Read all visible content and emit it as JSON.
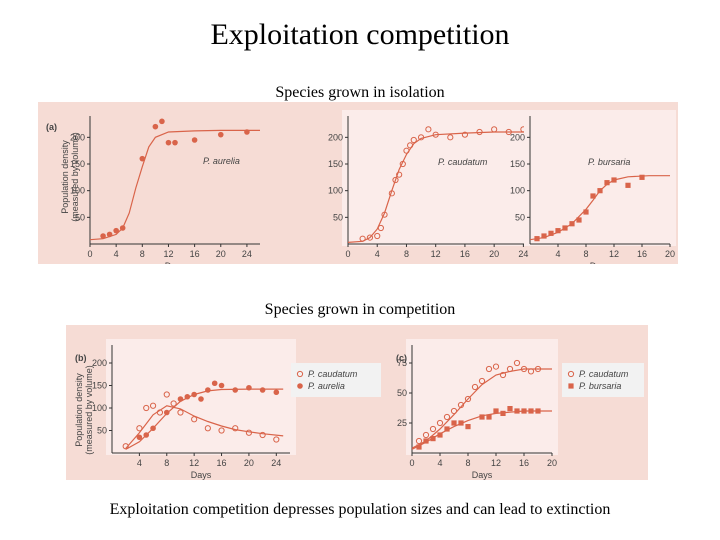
{
  "title": "Exploitation competition",
  "isolation_subtitle": "Species grown in isolation",
  "competition_subtitle": "Species grown in competition",
  "caption": "Exploitation competition depresses population sizes and can lead to extinction",
  "colors": {
    "accent": "#d9644a",
    "panel": "#f6dcd5",
    "inset": "#fbecea",
    "legend": "#f2f2f2"
  },
  "chart_data": [
    {
      "id": "a1",
      "type": "scatter",
      "panel_label": "(a)",
      "xlabel": "Days",
      "ylabel_line1": "Population density",
      "ylabel_line2": "(measured by volume)",
      "xticks": [
        "0",
        "4",
        "8",
        "12",
        "16",
        "20",
        "24"
      ],
      "yticks": [
        "50",
        "100",
        "150",
        "200"
      ],
      "xlim": [
        0,
        26
      ],
      "ylim": [
        0,
        240
      ],
      "series": [
        {
          "name": "P. aurelia",
          "marker": "circle-filled",
          "x": [
            2,
            3,
            4,
            5,
            8,
            10,
            11,
            12,
            13,
            16,
            20,
            24
          ],
          "y": [
            15,
            18,
            25,
            30,
            160,
            220,
            230,
            190,
            190,
            195,
            205,
            210
          ],
          "fit": [
            [
              0,
              8
            ],
            [
              2,
              10
            ],
            [
              4,
              18
            ],
            [
              5,
              30
            ],
            [
              6,
              58
            ],
            [
              7,
              105
            ],
            [
              8,
              145
            ],
            [
              9,
              182
            ],
            [
              10,
              200
            ],
            [
              12,
              210
            ],
            [
              16,
              212
            ],
            [
              20,
              213
            ],
            [
              26,
              213
            ]
          ]
        }
      ],
      "annotation": "P. aurelia"
    },
    {
      "id": "a2",
      "type": "scatter",
      "xlabel": "",
      "xticks": [
        "0",
        "4",
        "8",
        "12",
        "16",
        "20",
        "24"
      ],
      "yticks": [
        "50",
        "100",
        "150",
        "200"
      ],
      "xlim": [
        0,
        26
      ],
      "ylim": [
        0,
        240
      ],
      "series": [
        {
          "name": "P. caudatum",
          "marker": "circle-open",
          "x": [
            2,
            3,
            4,
            4.5,
            5,
            6,
            6.5,
            7,
            7.5,
            8,
            8.5,
            9,
            10,
            11,
            12,
            14,
            16,
            18,
            20,
            22,
            24
          ],
          "y": [
            10,
            12,
            15,
            30,
            55,
            95,
            120,
            130,
            150,
            175,
            185,
            195,
            200,
            215,
            205,
            200,
            205,
            210,
            215,
            210,
            215
          ],
          "fit": [
            [
              0,
              3
            ],
            [
              2,
              5
            ],
            [
              3,
              12
            ],
            [
              4,
              28
            ],
            [
              5,
              58
            ],
            [
              6,
              100
            ],
            [
              7,
              140
            ],
            [
              8,
              168
            ],
            [
              9,
              188
            ],
            [
              10,
              198
            ],
            [
              12,
              205
            ],
            [
              16,
              208
            ],
            [
              20,
              210
            ],
            [
              26,
              210
            ]
          ]
        }
      ],
      "annotation": "P. caudatum"
    },
    {
      "id": "a3",
      "type": "scatter",
      "xlabel": "Days",
      "xticks": [
        "4",
        "8",
        "12",
        "16",
        "20"
      ],
      "yticks": [
        "50",
        "100",
        "150",
        "200"
      ],
      "xlim": [
        0,
        20
      ],
      "ylim": [
        0,
        240
      ],
      "series": [
        {
          "name": "P. bursaria",
          "marker": "square-filled",
          "x": [
            1,
            2,
            3,
            4,
            5,
            6,
            7,
            8,
            9,
            10,
            11,
            12,
            14,
            16
          ],
          "y": [
            10,
            15,
            20,
            25,
            30,
            38,
            45,
            60,
            90,
            100,
            115,
            120,
            110,
            125
          ],
          "fit": [
            [
              0,
              8
            ],
            [
              2,
              12
            ],
            [
              4,
              22
            ],
            [
              6,
              38
            ],
            [
              8,
              65
            ],
            [
              9,
              82
            ],
            [
              10,
              100
            ],
            [
              11,
              112
            ],
            [
              12,
              120
            ],
            [
              14,
              126
            ],
            [
              17,
              128
            ],
            [
              20,
              128
            ]
          ]
        }
      ],
      "annotation": "P. bursaria"
    },
    {
      "id": "b",
      "type": "scatter",
      "panel_label": "(b)",
      "xlabel": "Days",
      "ylabel_line1": "Population density",
      "ylabel_line2": "(measured by volume)",
      "xticks": [
        "4",
        "8",
        "12",
        "16",
        "20",
        "24"
      ],
      "yticks": [
        "50",
        "100",
        "150",
        "200"
      ],
      "xlim": [
        0,
        26
      ],
      "ylim": [
        0,
        240
      ],
      "legend": [
        "P. caudatum",
        "P. aurelia"
      ],
      "series": [
        {
          "name": "P. caudatum",
          "marker": "circle-open",
          "x": [
            2,
            4,
            5,
            6,
            7,
            8,
            9,
            10,
            12,
            14,
            16,
            18,
            20,
            22,
            24
          ],
          "y": [
            15,
            55,
            100,
            105,
            90,
            130,
            110,
            90,
            75,
            55,
            50,
            55,
            45,
            40,
            30
          ],
          "fit": [
            [
              2,
              10
            ],
            [
              4,
              45
            ],
            [
              6,
              85
            ],
            [
              8,
              105
            ],
            [
              10,
              98
            ],
            [
              12,
              82
            ],
            [
              14,
              70
            ],
            [
              16,
              60
            ],
            [
              18,
              52
            ],
            [
              20,
              47
            ],
            [
              22,
              43
            ],
            [
              25,
              38
            ]
          ]
        },
        {
          "name": "P. aurelia",
          "marker": "circle-filled",
          "x": [
            4,
            5,
            6,
            8,
            10,
            11,
            12,
            13,
            14,
            15,
            16,
            18,
            20,
            22,
            24
          ],
          "y": [
            35,
            40,
            55,
            90,
            120,
            125,
            130,
            120,
            140,
            155,
            150,
            140,
            145,
            140,
            135
          ],
          "fit": [
            [
              2,
              8
            ],
            [
              4,
              25
            ],
            [
              6,
              55
            ],
            [
              8,
              88
            ],
            [
              10,
              115
            ],
            [
              12,
              130
            ],
            [
              14,
              138
            ],
            [
              16,
              141
            ],
            [
              20,
              142
            ],
            [
              25,
              142
            ]
          ]
        }
      ]
    },
    {
      "id": "c",
      "type": "scatter",
      "panel_label": "(c)",
      "xlabel": "Days",
      "xticks": [
        "0",
        "4",
        "8",
        "12",
        "16",
        "20"
      ],
      "yticks": [
        "25",
        "50",
        "75"
      ],
      "xlim": [
        0,
        20
      ],
      "ylim": [
        0,
        90
      ],
      "legend": [
        "P. caudatum",
        "P. bursaria"
      ],
      "series": [
        {
          "name": "P. caudatum",
          "marker": "circle-open",
          "x": [
            1,
            2,
            3,
            4,
            5,
            6,
            7,
            8,
            9,
            10,
            11,
            12,
            13,
            14,
            15,
            16,
            17,
            18
          ],
          "y": [
            10,
            15,
            20,
            25,
            30,
            35,
            40,
            45,
            55,
            60,
            70,
            72,
            65,
            70,
            75,
            70,
            68,
            70
          ],
          "fit": [
            [
              0,
              4
            ],
            [
              2,
              10
            ],
            [
              4,
              20
            ],
            [
              6,
              32
            ],
            [
              8,
              45
            ],
            [
              10,
              57
            ],
            [
              12,
              65
            ],
            [
              14,
              68
            ],
            [
              16,
              70
            ],
            [
              18,
              70
            ],
            [
              20,
              70
            ]
          ]
        },
        {
          "name": "P. bursaria",
          "marker": "square-filled",
          "x": [
            1,
            2,
            3,
            4,
            5,
            6,
            7,
            8,
            10,
            11,
            12,
            13,
            14,
            15,
            16,
            17,
            18
          ],
          "y": [
            5,
            10,
            12,
            15,
            20,
            25,
            25,
            22,
            30,
            30,
            35,
            33,
            37,
            35,
            35,
            35,
            35
          ],
          "fit": [
            [
              0,
              3
            ],
            [
              2,
              9
            ],
            [
              4,
              16
            ],
            [
              6,
              22
            ],
            [
              8,
              27
            ],
            [
              10,
              31
            ],
            [
              12,
              33
            ],
            [
              14,
              34
            ],
            [
              16,
              35
            ],
            [
              18,
              35
            ],
            [
              20,
              35
            ]
          ]
        }
      ]
    }
  ]
}
